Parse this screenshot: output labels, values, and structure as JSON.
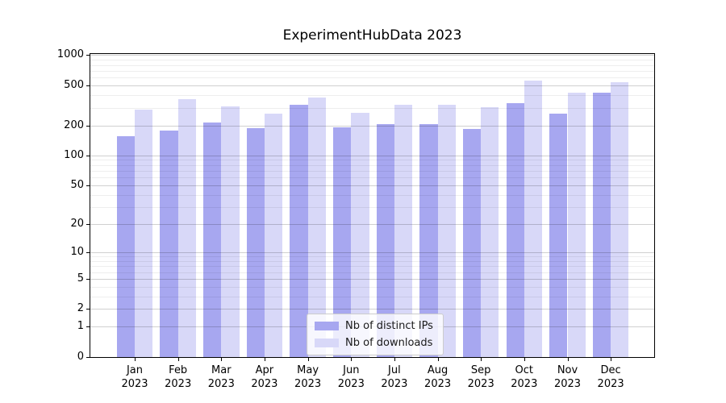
{
  "chart_data": {
    "type": "bar",
    "title": "ExperimentHubData 2023",
    "scale": "log10(value+1)",
    "categories": [
      "Jan",
      "Feb",
      "Mar",
      "Apr",
      "May",
      "Jun",
      "Jul",
      "Aug",
      "Sep",
      "Oct",
      "Nov",
      "Dec"
    ],
    "category_year": "2023",
    "series": [
      {
        "name": "Nb of distinct IPs",
        "color": "#a7a7f0",
        "values": [
          155,
          177,
          212,
          186,
          321,
          192,
          207,
          206,
          185,
          331,
          264,
          424
        ]
      },
      {
        "name": "Nb of downloads",
        "color": "#d8d8f8",
        "values": [
          285,
          362,
          311,
          260,
          380,
          269,
          321,
          322,
          302,
          558,
          425,
          538
        ]
      }
    ],
    "yticks": [
      0,
      1,
      2,
      5,
      10,
      20,
      50,
      100,
      200,
      500,
      1000
    ],
    "minor_gridlines": [
      3,
      4,
      6,
      7,
      8,
      9,
      30,
      40,
      60,
      70,
      80,
      90,
      300,
      400,
      600,
      700,
      800,
      900
    ],
    "ylim": [
      0,
      1030
    ],
    "xlabel": "",
    "ylabel": "",
    "grid": true,
    "legend_position": "bottom-center-inside"
  },
  "colors": {
    "axis": "#000000",
    "grid_major": "#cfcfcf",
    "grid_minor": "#ededed",
    "legend_border": "#cccccc",
    "background": "#ffffff"
  }
}
